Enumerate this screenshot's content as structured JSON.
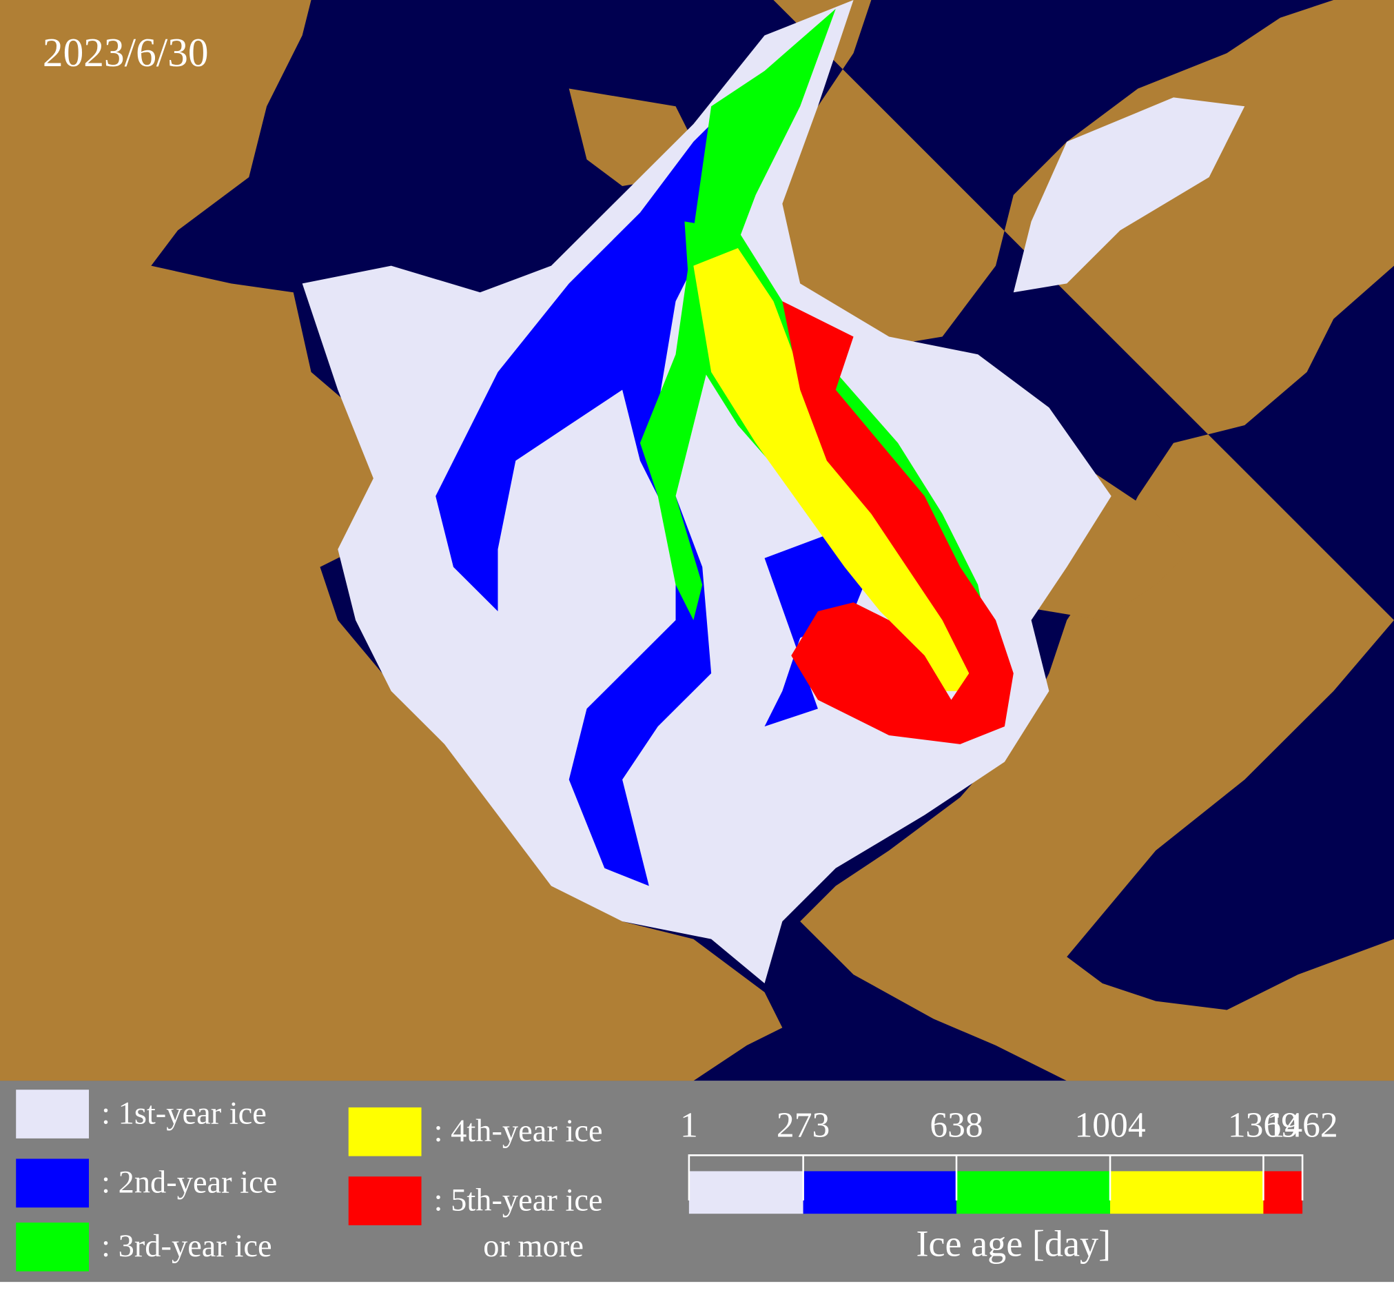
{
  "date": "2023/6/30",
  "legend": [
    {
      "label": [
        ": 1st-year ice"
      ],
      "color": "#e6e6f8"
    },
    {
      "label": [
        ": 2nd-year ice"
      ],
      "color": "#0000ff"
    },
    {
      "label": [
        ": 3rd-year ice"
      ],
      "color": "#00ff00"
    },
    {
      "label": [
        ": 4th-year ice"
      ],
      "color": "#ffff00"
    },
    {
      "label": [
        ": 5th-year ice",
        "or more"
      ],
      "color": "#ff0000"
    }
  ],
  "colorbar": {
    "title": "Ice age [day]",
    "ticks": [
      1,
      273,
      638,
      1004,
      1369,
      1462
    ],
    "colors": [
      "#e6e6f8",
      "#0000ff",
      "#00ff00",
      "#ffff00",
      "#ff0000"
    ]
  }
}
